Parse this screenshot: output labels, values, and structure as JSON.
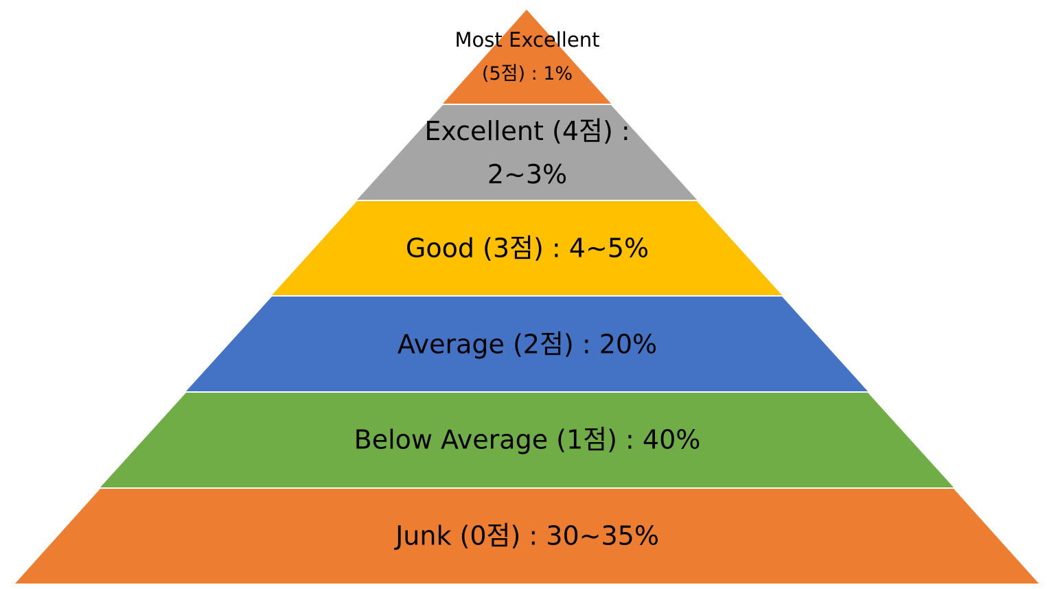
{
  "diagram": {
    "type": "pyramid",
    "tiers": [
      {
        "id": "most-excellent",
        "lines": [
          "Most Excellent",
          "(5점) : 1%"
        ],
        "color": "#ED7D31"
      },
      {
        "id": "excellent",
        "lines": [
          "Excellent (4점) :",
          "2~3%"
        ],
        "color": "#A5A5A5"
      },
      {
        "id": "good",
        "lines": [
          "Good (3점) : 4~5%"
        ],
        "color": "#FFC000"
      },
      {
        "id": "average",
        "lines": [
          "Average (2점) : 20%"
        ],
        "color": "#4472C4"
      },
      {
        "id": "below-average",
        "lines": [
          "Below Average (1점) : 40%"
        ],
        "color": "#70AD47"
      },
      {
        "id": "junk",
        "lines": [
          "Junk (0점) : 30~35%"
        ],
        "color": "#ED7D31"
      }
    ]
  }
}
